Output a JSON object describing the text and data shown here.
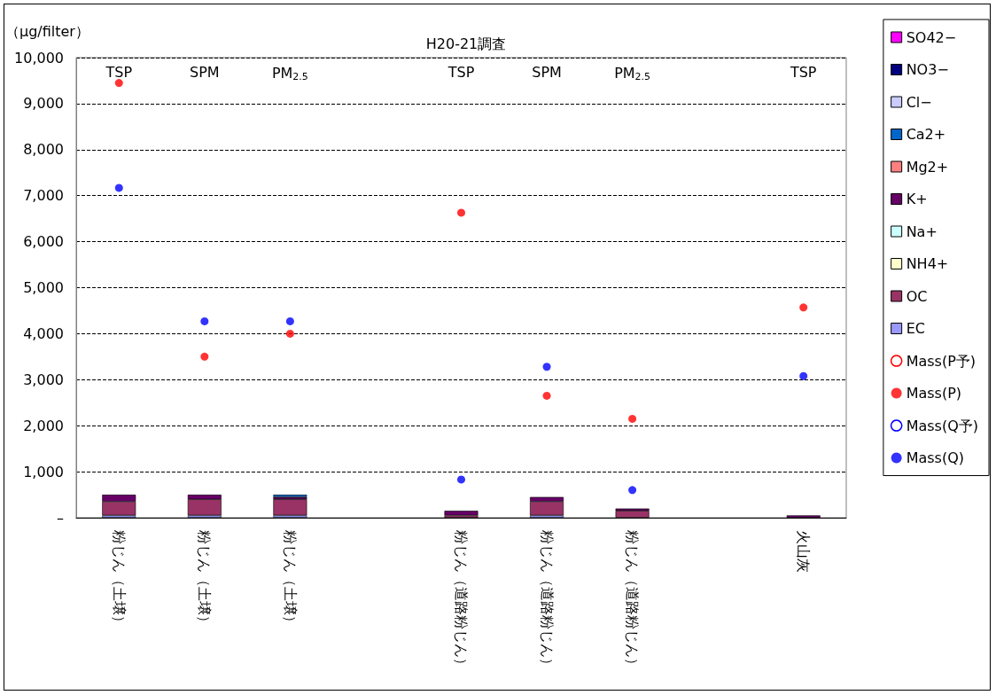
{
  "chart_data": {
    "type": "bar",
    "stacked": true,
    "title": "H20-21調査",
    "ylabel": "（μg/filter）",
    "categories": [
      "粉じん（土壌）",
      "粉じん（土壌）",
      "粉じん（土壌）",
      null,
      "粉じん（道路粉じん）",
      "粉じん（道路粉じん）",
      "粉じん（道路粉じん）",
      null,
      "火山灰"
    ],
    "annotations": [
      "TSP",
      "SPM",
      "PM$_{2.5}$",
      "TSP",
      "SPM",
      "PM$_{2.5}$",
      "TSP"
    ],
    "series": [
      {
        "name": "EC",
        "color": "#9999ff",
        "values": [
          50,
          50,
          50,
          null,
          null,
          50,
          null,
          null,
          null
        ]
      },
      {
        "name": "OC",
        "color": "#993366",
        "values": [
          300,
          350,
          350,
          null,
          50,
          300,
          150,
          null,
          null
        ]
      },
      {
        "name": "NH4+",
        "color": "#ffffcc",
        "values": [
          null,
          null,
          null,
          null,
          null,
          null,
          null,
          null,
          null
        ]
      },
      {
        "name": "Na+",
        "color": "#ccffff",
        "values": [
          null,
          null,
          null,
          null,
          null,
          null,
          null,
          null,
          null
        ]
      },
      {
        "name": "K+",
        "color": "#660066",
        "values": [
          150,
          100,
          50,
          null,
          100,
          100,
          50,
          null,
          50
        ]
      },
      {
        "name": "Mg2+",
        "color": "#ff8080",
        "values": [
          null,
          null,
          null,
          null,
          null,
          null,
          null,
          null,
          null
        ]
      },
      {
        "name": "Ca2+",
        "color": "#0066cc",
        "values": [
          null,
          null,
          50,
          null,
          null,
          null,
          null,
          null,
          null
        ]
      },
      {
        "name": "Cl−",
        "color": "#ccccff",
        "values": [
          null,
          null,
          null,
          null,
          null,
          null,
          null,
          null,
          null
        ]
      },
      {
        "name": "NO3−",
        "color": "#000080",
        "values": [
          null,
          null,
          null,
          null,
          null,
          null,
          null,
          null,
          null
        ]
      },
      {
        "name": "SO42−",
        "color": "#ff00ff",
        "values": [
          null,
          null,
          null,
          null,
          null,
          null,
          null,
          null,
          null
        ]
      },
      {
        "name": "Mass(P予)",
        "type": "scatter",
        "marker": "open-circle",
        "color": "#ff0000",
        "values": [
          null,
          null,
          null,
          null,
          null,
          null,
          null,
          null,
          null
        ]
      },
      {
        "name": "Mass(P)",
        "type": "scatter",
        "color": "#ff0000",
        "values": [
          9450,
          3500,
          4000,
          null,
          6630,
          2650,
          2150,
          null,
          4570
        ]
      },
      {
        "name": "Mass(Q予)",
        "type": "scatter",
        "marker": "open-circle",
        "color": "#0000ff",
        "values": [
          null,
          null,
          null,
          null,
          null,
          null,
          null,
          null,
          null
        ]
      },
      {
        "name": "Mass(Q)",
        "type": "scatter",
        "color": "#0000ff",
        "values": [
          7170,
          4270,
          4270,
          null,
          830,
          3280,
          600,
          null,
          3080
        ]
      }
    ],
    "ylim": [
      0,
      10000
    ],
    "yticks": [
      {
        "value": 0,
        "label": "–"
      },
      {
        "value": 1000,
        "label": "1,000"
      },
      {
        "value": 2000,
        "label": "2,000"
      },
      {
        "value": 3000,
        "label": "3,000"
      },
      {
        "value": 4000,
        "label": "4,000"
      },
      {
        "value": 5000,
        "label": "5,000"
      },
      {
        "value": 6000,
        "label": "6,000"
      },
      {
        "value": 7000,
        "label": "7,000"
      },
      {
        "value": 8000,
        "label": "8,000"
      },
      {
        "value": 9000,
        "label": "9,000"
      },
      {
        "value": 10000,
        "label": "10,000"
      }
    ],
    "grid": "y",
    "legend": "top right",
    "marker": "circle"
  }
}
